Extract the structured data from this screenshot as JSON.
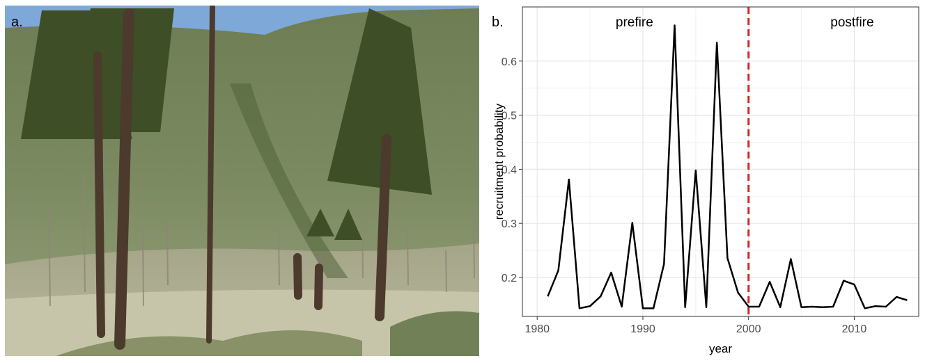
{
  "photo_label": "a.",
  "chart_data": {
    "type": "line",
    "panel_label": "b.",
    "annotations": [
      "prefire",
      "postfire"
    ],
    "xlabel": "year",
    "ylabel": "recruitment probability",
    "x": [
      1981,
      1982,
      1983,
      1984,
      1985,
      1986,
      1987,
      1988,
      1989,
      1990,
      1991,
      1992,
      1993,
      1994,
      1995,
      1996,
      1997,
      1998,
      1999,
      2000,
      2001,
      2002,
      2003,
      2004,
      2005,
      2006,
      2007,
      2008,
      2009,
      2010,
      2011,
      2012,
      2013,
      2014,
      2015
    ],
    "series": [
      {
        "color": "#000000",
        "values": [
          0.165,
          0.213,
          0.381,
          0.143,
          0.147,
          0.165,
          0.209,
          0.146,
          0.301,
          0.143,
          0.143,
          0.225,
          0.666,
          0.145,
          0.398,
          0.145,
          0.634,
          0.236,
          0.172,
          0.146,
          0.146,
          0.192,
          0.145,
          0.234,
          0.145,
          0.146,
          0.145,
          0.146,
          0.194,
          0.187,
          0.143,
          0.147,
          0.146,
          0.164,
          0.158
        ]
      }
    ],
    "xlim": [
      1978.6,
      2016.1
    ],
    "xticks": [
      1980,
      1990,
      2000,
      2010
    ],
    "ylim": [
      0.128,
      0.7
    ],
    "yticks": [
      0.2,
      0.3,
      0.4,
      0.5,
      0.6
    ],
    "vline": {
      "x": 2000,
      "color": "#d62728"
    },
    "grid": true
  }
}
